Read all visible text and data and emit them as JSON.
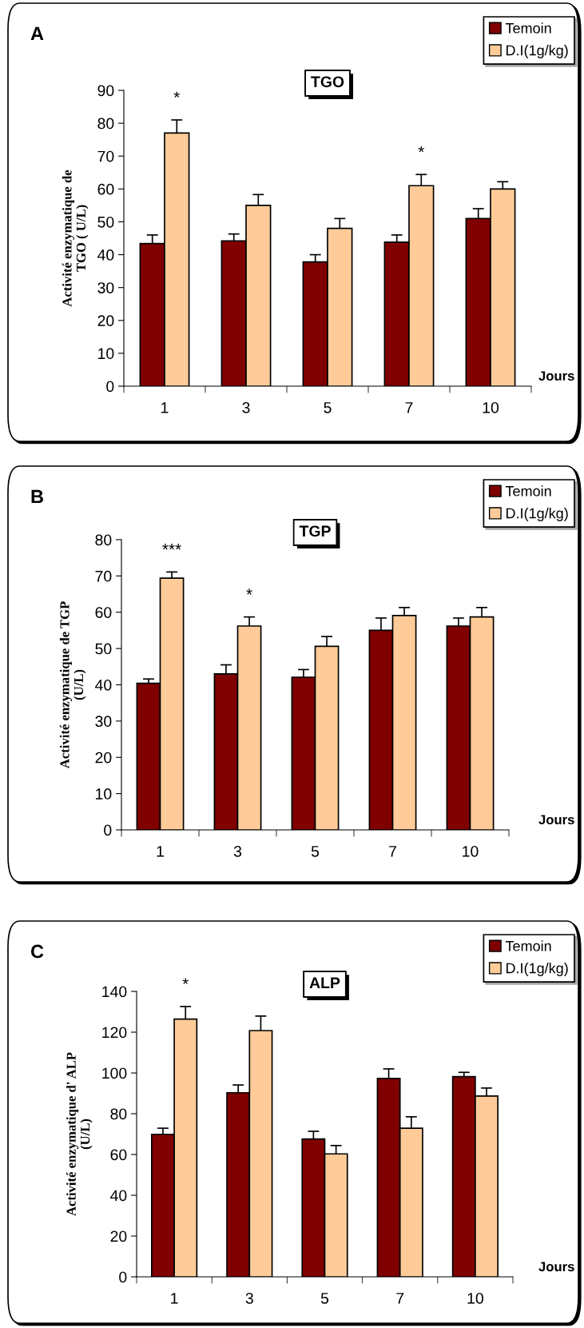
{
  "chart_data": [
    {
      "type": "bar",
      "title": "TGO",
      "xlabel": "Jours",
      "ylabel": "Activité enzymatique de\nTGO ( U/L)",
      "categories": [
        "1",
        "3",
        "5",
        "7",
        "10"
      ],
      "series": [
        {
          "name": "Temoin",
          "color": "#800000",
          "values": [
            43.4,
            44.2,
            37.8,
            43.8,
            51
          ],
          "errors": [
            2.6,
            2.1,
            2.2,
            2.2,
            3
          ]
        },
        {
          "name": "D.I(1g/kg)",
          "color": "#ffcc99",
          "values": [
            77,
            55,
            48,
            61,
            60
          ],
          "errors": [
            4,
            3.3,
            3,
            3.4,
            2.2
          ]
        }
      ],
      "ylim": [
        0,
        90
      ],
      "yticks": [
        0,
        10,
        20,
        30,
        40,
        50,
        60,
        70,
        80,
        90
      ],
      "legend": "top right",
      "grid": false,
      "annotations": [
        "A",
        {
          "text": "*",
          "x": "1",
          "y": 77
        },
        {
          "text": "*",
          "x": "7",
          "y": 61
        }
      ]
    },
    {
      "type": "bar",
      "title": "TGP",
      "xlabel": "Jours",
      "ylabel": "Activité enzymatique de TGP\n(U/L)",
      "categories": [
        "1",
        "3",
        "5",
        "7",
        "10"
      ],
      "series": [
        {
          "name": "Temoin",
          "color": "#800000",
          "values": [
            40.4,
            43,
            42.1,
            55,
            56.2
          ],
          "errors": [
            1.2,
            2.5,
            2.1,
            3.4,
            2.2
          ]
        },
        {
          "name": "D.I(1g/kg)",
          "color": "#ffcc99",
          "values": [
            69.4,
            56.2,
            50.6,
            59.1,
            58.7
          ],
          "errors": [
            1.7,
            2.5,
            2.7,
            2.2,
            2.6
          ]
        }
      ],
      "ylim": [
        0,
        80
      ],
      "yticks": [
        0,
        10,
        20,
        30,
        40,
        50,
        60,
        70,
        80
      ],
      "legend": "top right",
      "grid": false,
      "annotations": [
        "B",
        {
          "text": "***",
          "x": "1",
          "y": 69.4
        },
        {
          "text": "*",
          "x": "3",
          "y": 56.2
        }
      ]
    },
    {
      "type": "bar",
      "title": "ALP",
      "xlabel": "Jours",
      "ylabel": "Activité enzymatique d' ALP\n(U/L)",
      "categories": [
        "1",
        "3",
        "5",
        "7",
        "10"
      ],
      "series": [
        {
          "name": "Temoin",
          "color": "#800000",
          "values": [
            69.9,
            90.3,
            67.6,
            97.3,
            98.2
          ],
          "errors": [
            3,
            3.8,
            3.8,
            4.7,
            2.1
          ]
        },
        {
          "name": "D.I(1g/kg)",
          "color": "#ffcc99",
          "values": [
            126.4,
            120.8,
            60.3,
            72.9,
            88.7
          ],
          "errors": [
            6.2,
            7.1,
            4.1,
            5.6,
            3.9
          ]
        }
      ],
      "ylim": [
        0,
        140
      ],
      "yticks": [
        0,
        20,
        40,
        60,
        80,
        100,
        120,
        140
      ],
      "legend": "top right",
      "grid": false,
      "annotations": [
        "C",
        {
          "text": "*",
          "x": "1",
          "y": 126.4
        }
      ]
    }
  ]
}
